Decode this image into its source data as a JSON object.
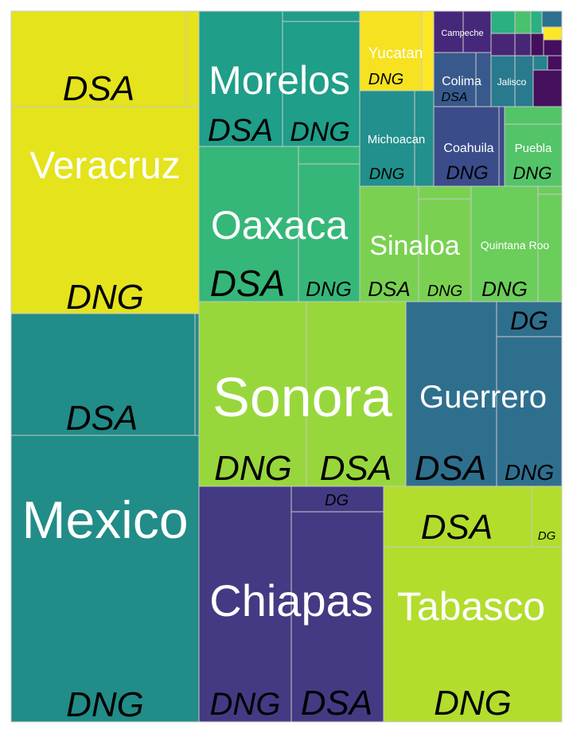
{
  "chart_data": {
    "type": "treemap",
    "colors": {
      "Veracruz": "#e4e31c",
      "Mexico": "#218c88",
      "Morelos": "#1f9e89",
      "Oaxaca": "#35b779",
      "Sonora": "#98d73c",
      "Guerrero": "#2f6f8e",
      "Chiapas": "#443a83",
      "Tabasco": "#b2dd2d",
      "Yucatan": "#f6e220",
      "Campeche": "#46287a",
      "Michoacan": "#22908c",
      "Colima": "#38598c",
      "Jalisco": "#297a8e",
      "Coahuila": "#3b4c8b",
      "Puebla": "#53c468",
      "Sinaloa": "#7ad151",
      "Quintana Roo": "#6bcd5a",
      "misc_a": "#440f5d",
      "misc_b": "#2bb07f",
      "misc_c": "#4ac16d",
      "misc_d": "#2d708e",
      "misc_e": "#482677",
      "misc_f": "#fde725",
      "misc_g": "#26828e"
    },
    "groups": [
      {
        "state": "Veracruz",
        "children": [
          {
            "label": "DSA"
          },
          {
            "label": "DNG"
          },
          {
            "label": ""
          }
        ]
      },
      {
        "state": "Mexico",
        "children": [
          {
            "label": "DSA"
          },
          {
            "label": "DNG"
          },
          {
            "label": ""
          }
        ]
      },
      {
        "state": "Morelos",
        "children": [
          {
            "label": "DSA"
          },
          {
            "label": "DNG"
          },
          {
            "label": ""
          }
        ]
      },
      {
        "state": "Oaxaca",
        "children": [
          {
            "label": "DSA"
          },
          {
            "label": "DNG"
          },
          {
            "label": ""
          }
        ]
      },
      {
        "state": "Sonora",
        "children": [
          {
            "label": "DNG"
          },
          {
            "label": "DSA"
          }
        ]
      },
      {
        "state": "Guerrero",
        "children": [
          {
            "label": "DSA"
          },
          {
            "label": "DG"
          },
          {
            "label": "DNG"
          }
        ]
      },
      {
        "state": "Chiapas",
        "children": [
          {
            "label": "DNG"
          },
          {
            "label": "DG"
          },
          {
            "label": "DSA"
          }
        ]
      },
      {
        "state": "Tabasco",
        "children": [
          {
            "label": "DSA"
          },
          {
            "label": "DG"
          },
          {
            "label": "DNG"
          }
        ]
      },
      {
        "state": "Yucatan",
        "children": [
          {
            "label": "DNG"
          }
        ]
      },
      {
        "state": "Michoacan",
        "children": [
          {
            "label": "DNG"
          }
        ]
      },
      {
        "state": "Campeche",
        "children": []
      },
      {
        "state": "Colima",
        "children": [
          {
            "label": "DSA"
          }
        ]
      },
      {
        "state": "Jalisco",
        "children": []
      },
      {
        "state": "Coahuila",
        "children": [
          {
            "label": "DNG"
          }
        ]
      },
      {
        "state": "Puebla",
        "children": [
          {
            "label": "DNG"
          }
        ]
      },
      {
        "state": "Sinaloa",
        "children": [
          {
            "label": "DSA"
          },
          {
            "label": "DNG"
          }
        ]
      },
      {
        "state": "Quintana Roo",
        "children": [
          {
            "label": "DNG"
          }
        ]
      }
    ]
  }
}
